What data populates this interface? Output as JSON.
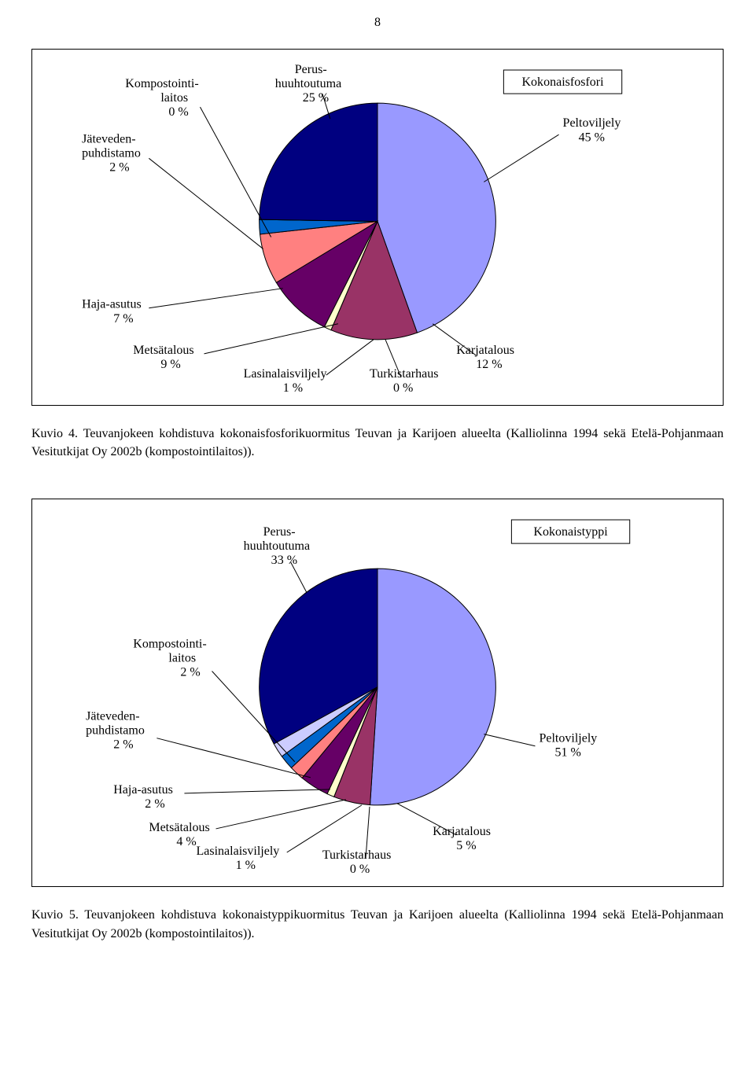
{
  "page_number": "8",
  "chart1": {
    "type": "pie",
    "title": "Kokonaisfosfori",
    "background_color": "#ffffff",
    "slice_stroke": "#000000",
    "slices": [
      {
        "label": "Peltoviljely",
        "value": 45,
        "color": "#9999ff"
      },
      {
        "label": "Karjatalous",
        "value": 12,
        "color": "#993366"
      },
      {
        "label": "Turkistarhaus",
        "value": 0,
        "color": "#ccffff"
      },
      {
        "label": "Lasinalaisviljely",
        "value": 1,
        "color": "#ffffcc"
      },
      {
        "label": "Metsätalous",
        "value": 9,
        "color": "#660066"
      },
      {
        "label": "Haja-asutus",
        "value": 7,
        "color": "#ff8080"
      },
      {
        "label": "Jäteveden-puhdistamo",
        "value": 2,
        "color": "#0066cc"
      },
      {
        "label": "Kompostointi-laitos",
        "value": 0,
        "color": "#ccccff"
      },
      {
        "label": "Perus-huuhtoutuma",
        "value": 25,
        "color": "#000080"
      }
    ],
    "label_fontsize": 16
  },
  "caption1": "Kuvio 4. Teuvanjokeen kohdistuva kokonaisfosforikuormitus Teuvan ja Karijoen alueelta (Kalliolinna 1994 sekä Etelä-Pohjanmaan Vesitutkijat Oy 2002b (kompostointilaitos)).",
  "chart2": {
    "type": "pie",
    "title": "Kokonaistyppi",
    "background_color": "#ffffff",
    "slice_stroke": "#000000",
    "slices": [
      {
        "label": "Peltoviljely",
        "value": 51,
        "color": "#9999ff"
      },
      {
        "label": "Karjatalous",
        "value": 5,
        "color": "#993366"
      },
      {
        "label": "Turkistarhaus",
        "value": 0,
        "color": "#ccffff"
      },
      {
        "label": "Lasinalaisviljely",
        "value": 1,
        "color": "#ffffcc"
      },
      {
        "label": "Metsätalous",
        "value": 4,
        "color": "#660066"
      },
      {
        "label": "Haja-asutus",
        "value": 2,
        "color": "#ff8080"
      },
      {
        "label": "Jäteveden-puhdistamo",
        "value": 2,
        "color": "#0066cc"
      },
      {
        "label": "Kompostointi-laitos",
        "value": 2,
        "color": "#ccccff"
      },
      {
        "label": "Perus-huuhtoutuma",
        "value": 33,
        "color": "#000080"
      }
    ],
    "label_fontsize": 16
  },
  "caption2": "Kuvio 5. Teuvanjokeen kohdistuva kokonaistyppikuormitus Teuvan ja Karijoen alueelta (Kalliolinna 1994 sekä Etelä-Pohjanmaan Vesitutkijat Oy 2002b (kompostointilaitos))."
}
